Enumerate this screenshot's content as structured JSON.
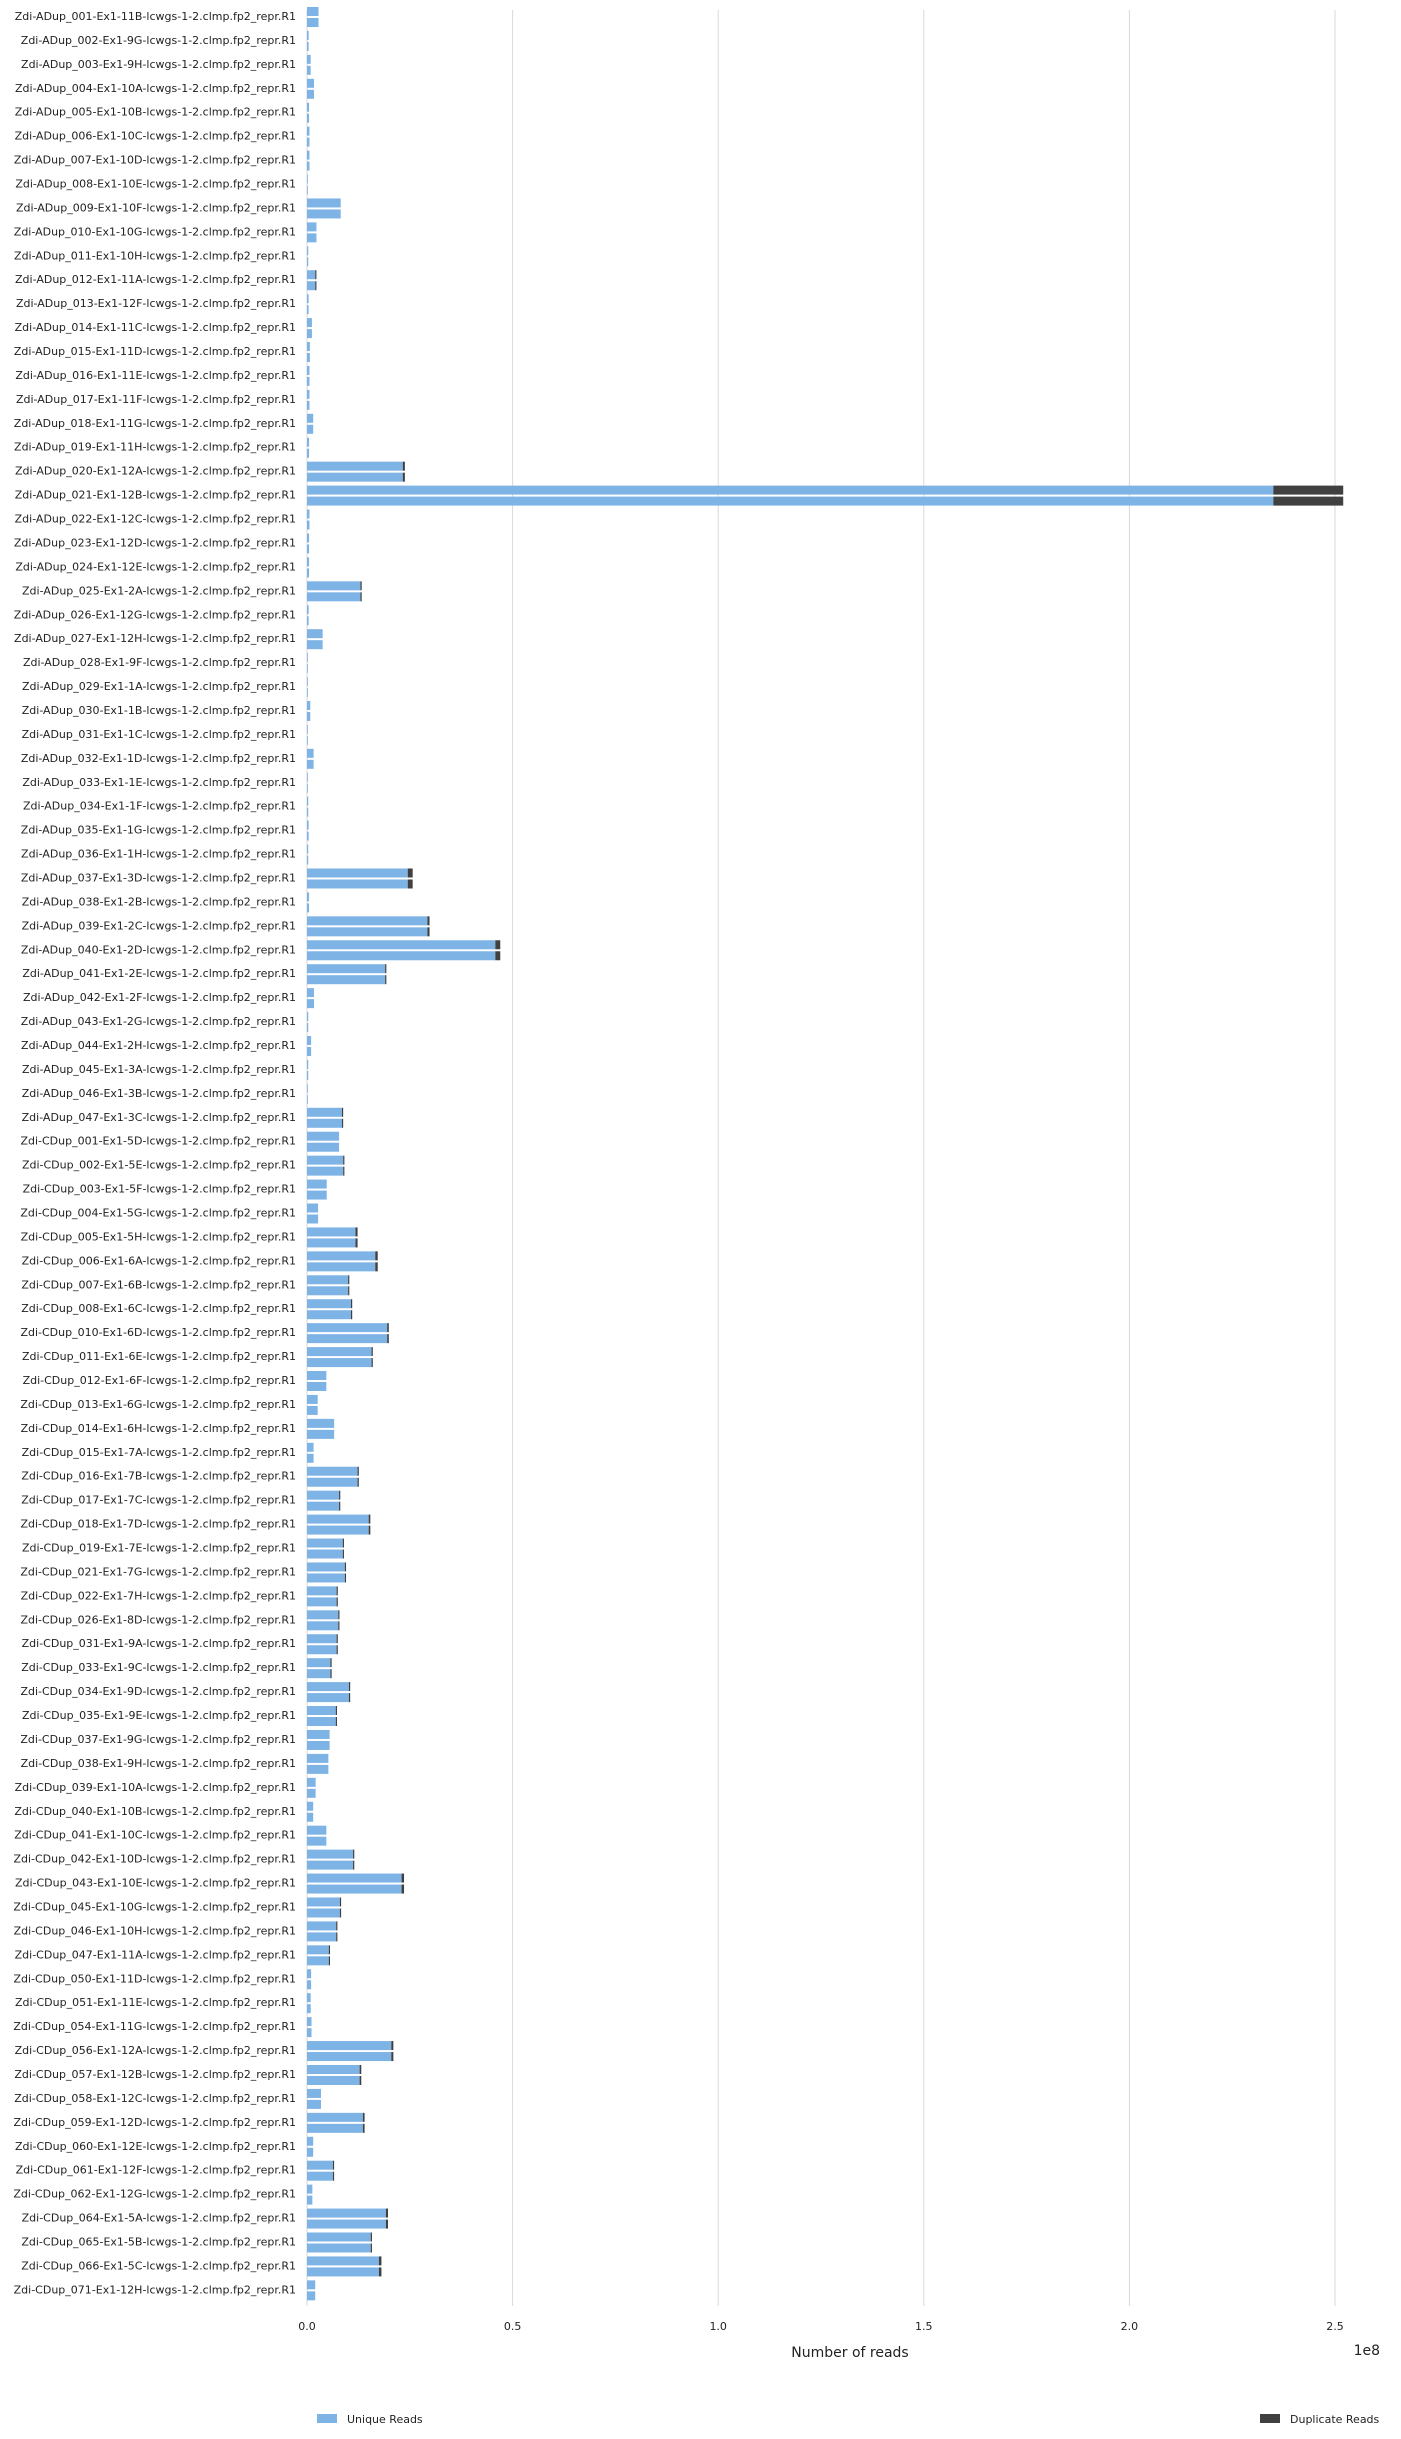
{
  "chart_data": {
    "type": "bar",
    "orientation": "horizontal",
    "stacked": true,
    "xlabel": "Number of reads",
    "x_offset_text": "1e8",
    "xlim": [
      0,
      2.55
    ],
    "xticks": [
      0.0,
      0.5,
      1.0,
      1.5,
      2.0,
      2.5
    ],
    "xtick_labels": [
      "0.0",
      "0.5",
      "1.0",
      "1.5",
      "2.0",
      "2.5"
    ],
    "grid": "vertical",
    "legend_position": "bottom",
    "colors": {
      "unique": "#7eb3e6",
      "duplicate": "#404040",
      "grid": "#d9d9d9"
    },
    "series": [
      {
        "name": "Unique Reads",
        "color": "#7eb3e6"
      },
      {
        "name": "Duplicate Reads",
        "color": "#404040"
      }
    ],
    "categories": [
      "Zdi-ADup_001-Ex1-11B-lcwgs-1-2.clmp.fp2_repr.R1",
      "Zdi-ADup_002-Ex1-9G-lcwgs-1-2.clmp.fp2_repr.R1",
      "Zdi-ADup_003-Ex1-9H-lcwgs-1-2.clmp.fp2_repr.R1",
      "Zdi-ADup_004-Ex1-10A-lcwgs-1-2.clmp.fp2_repr.R1",
      "Zdi-ADup_005-Ex1-10B-lcwgs-1-2.clmp.fp2_repr.R1",
      "Zdi-ADup_006-Ex1-10C-lcwgs-1-2.clmp.fp2_repr.R1",
      "Zdi-ADup_007-Ex1-10D-lcwgs-1-2.clmp.fp2_repr.R1",
      "Zdi-ADup_008-Ex1-10E-lcwgs-1-2.clmp.fp2_repr.R1",
      "Zdi-ADup_009-Ex1-10F-lcwgs-1-2.clmp.fp2_repr.R1",
      "Zdi-ADup_010-Ex1-10G-lcwgs-1-2.clmp.fp2_repr.R1",
      "Zdi-ADup_011-Ex1-10H-lcwgs-1-2.clmp.fp2_repr.R1",
      "Zdi-ADup_012-Ex1-11A-lcwgs-1-2.clmp.fp2_repr.R1",
      "Zdi-ADup_013-Ex1-12F-lcwgs-1-2.clmp.fp2_repr.R1",
      "Zdi-ADup_014-Ex1-11C-lcwgs-1-2.clmp.fp2_repr.R1",
      "Zdi-ADup_015-Ex1-11D-lcwgs-1-2.clmp.fp2_repr.R1",
      "Zdi-ADup_016-Ex1-11E-lcwgs-1-2.clmp.fp2_repr.R1",
      "Zdi-ADup_017-Ex1-11F-lcwgs-1-2.clmp.fp2_repr.R1",
      "Zdi-ADup_018-Ex1-11G-lcwgs-1-2.clmp.fp2_repr.R1",
      "Zdi-ADup_019-Ex1-11H-lcwgs-1-2.clmp.fp2_repr.R1",
      "Zdi-ADup_020-Ex1-12A-lcwgs-1-2.clmp.fp2_repr.R1",
      "Zdi-ADup_021-Ex1-12B-lcwgs-1-2.clmp.fp2_repr.R1",
      "Zdi-ADup_022-Ex1-12C-lcwgs-1-2.clmp.fp2_repr.R1",
      "Zdi-ADup_023-Ex1-12D-lcwgs-1-2.clmp.fp2_repr.R1",
      "Zdi-ADup_024-Ex1-12E-lcwgs-1-2.clmp.fp2_repr.R1",
      "Zdi-ADup_025-Ex1-2A-lcwgs-1-2.clmp.fp2_repr.R1",
      "Zdi-ADup_026-Ex1-12G-lcwgs-1-2.clmp.fp2_repr.R1",
      "Zdi-ADup_027-Ex1-12H-lcwgs-1-2.clmp.fp2_repr.R1",
      "Zdi-ADup_028-Ex1-9F-lcwgs-1-2.clmp.fp2_repr.R1",
      "Zdi-ADup_029-Ex1-1A-lcwgs-1-2.clmp.fp2_repr.R1",
      "Zdi-ADup_030-Ex1-1B-lcwgs-1-2.clmp.fp2_repr.R1",
      "Zdi-ADup_031-Ex1-1C-lcwgs-1-2.clmp.fp2_repr.R1",
      "Zdi-ADup_032-Ex1-1D-lcwgs-1-2.clmp.fp2_repr.R1",
      "Zdi-ADup_033-Ex1-1E-lcwgs-1-2.clmp.fp2_repr.R1",
      "Zdi-ADup_034-Ex1-1F-lcwgs-1-2.clmp.fp2_repr.R1",
      "Zdi-ADup_035-Ex1-1G-lcwgs-1-2.clmp.fp2_repr.R1",
      "Zdi-ADup_036-Ex1-1H-lcwgs-1-2.clmp.fp2_repr.R1",
      "Zdi-ADup_037-Ex1-3D-lcwgs-1-2.clmp.fp2_repr.R1",
      "Zdi-ADup_038-Ex1-2B-lcwgs-1-2.clmp.fp2_repr.R1",
      "Zdi-ADup_039-Ex1-2C-lcwgs-1-2.clmp.fp2_repr.R1",
      "Zdi-ADup_040-Ex1-2D-lcwgs-1-2.clmp.fp2_repr.R1",
      "Zdi-ADup_041-Ex1-2E-lcwgs-1-2.clmp.fp2_repr.R1",
      "Zdi-ADup_042-Ex1-2F-lcwgs-1-2.clmp.fp2_repr.R1",
      "Zdi-ADup_043-Ex1-2G-lcwgs-1-2.clmp.fp2_repr.R1",
      "Zdi-ADup_044-Ex1-2H-lcwgs-1-2.clmp.fp2_repr.R1",
      "Zdi-ADup_045-Ex1-3A-lcwgs-1-2.clmp.fp2_repr.R1",
      "Zdi-ADup_046-Ex1-3B-lcwgs-1-2.clmp.fp2_repr.R1",
      "Zdi-ADup_047-Ex1-3C-lcwgs-1-2.clmp.fp2_repr.R1",
      "Zdi-CDup_001-Ex1-5D-lcwgs-1-2.clmp.fp2_repr.R1",
      "Zdi-CDup_002-Ex1-5E-lcwgs-1-2.clmp.fp2_repr.R1",
      "Zdi-CDup_003-Ex1-5F-lcwgs-1-2.clmp.fp2_repr.R1",
      "Zdi-CDup_004-Ex1-5G-lcwgs-1-2.clmp.fp2_repr.R1",
      "Zdi-CDup_005-Ex1-5H-lcwgs-1-2.clmp.fp2_repr.R1",
      "Zdi-CDup_006-Ex1-6A-lcwgs-1-2.clmp.fp2_repr.R1",
      "Zdi-CDup_007-Ex1-6B-lcwgs-1-2.clmp.fp2_repr.R1",
      "Zdi-CDup_008-Ex1-6C-lcwgs-1-2.clmp.fp2_repr.R1",
      "Zdi-CDup_010-Ex1-6D-lcwgs-1-2.clmp.fp2_repr.R1",
      "Zdi-CDup_011-Ex1-6E-lcwgs-1-2.clmp.fp2_repr.R1",
      "Zdi-CDup_012-Ex1-6F-lcwgs-1-2.clmp.fp2_repr.R1",
      "Zdi-CDup_013-Ex1-6G-lcwgs-1-2.clmp.fp2_repr.R1",
      "Zdi-CDup_014-Ex1-6H-lcwgs-1-2.clmp.fp2_repr.R1",
      "Zdi-CDup_015-Ex1-7A-lcwgs-1-2.clmp.fp2_repr.R1",
      "Zdi-CDup_016-Ex1-7B-lcwgs-1-2.clmp.fp2_repr.R1",
      "Zdi-CDup_017-Ex1-7C-lcwgs-1-2.clmp.fp2_repr.R1",
      "Zdi-CDup_018-Ex1-7D-lcwgs-1-2.clmp.fp2_repr.R1",
      "Zdi-CDup_019-Ex1-7E-lcwgs-1-2.clmp.fp2_repr.R1",
      "Zdi-CDup_021-Ex1-7G-lcwgs-1-2.clmp.fp2_repr.R1",
      "Zdi-CDup_022-Ex1-7H-lcwgs-1-2.clmp.fp2_repr.R1",
      "Zdi-CDup_026-Ex1-8D-lcwgs-1-2.clmp.fp2_repr.R1",
      "Zdi-CDup_031-Ex1-9A-lcwgs-1-2.clmp.fp2_repr.R1",
      "Zdi-CDup_033-Ex1-9C-lcwgs-1-2.clmp.fp2_repr.R1",
      "Zdi-CDup_034-Ex1-9D-lcwgs-1-2.clmp.fp2_repr.R1",
      "Zdi-CDup_035-Ex1-9E-lcwgs-1-2.clmp.fp2_repr.R1",
      "Zdi-CDup_037-Ex1-9G-lcwgs-1-2.clmp.fp2_repr.R1",
      "Zdi-CDup_038-Ex1-9H-lcwgs-1-2.clmp.fp2_repr.R1",
      "Zdi-CDup_039-Ex1-10A-lcwgs-1-2.clmp.fp2_repr.R1",
      "Zdi-CDup_040-Ex1-10B-lcwgs-1-2.clmp.fp2_repr.R1",
      "Zdi-CDup_041-Ex1-10C-lcwgs-1-2.clmp.fp2_repr.R1",
      "Zdi-CDup_042-Ex1-10D-lcwgs-1-2.clmp.fp2_repr.R1",
      "Zdi-CDup_043-Ex1-10E-lcwgs-1-2.clmp.fp2_repr.R1",
      "Zdi-CDup_045-Ex1-10G-lcwgs-1-2.clmp.fp2_repr.R1",
      "Zdi-CDup_046-Ex1-10H-lcwgs-1-2.clmp.fp2_repr.R1",
      "Zdi-CDup_047-Ex1-11A-lcwgs-1-2.clmp.fp2_repr.R1",
      "Zdi-CDup_050-Ex1-11D-lcwgs-1-2.clmp.fp2_repr.R1",
      "Zdi-CDup_051-Ex1-11E-lcwgs-1-2.clmp.fp2_repr.R1",
      "Zdi-CDup_054-Ex1-11G-lcwgs-1-2.clmp.fp2_repr.R1",
      "Zdi-CDup_056-Ex1-12A-lcwgs-1-2.clmp.fp2_repr.R1",
      "Zdi-CDup_057-Ex1-12B-lcwgs-1-2.clmp.fp2_repr.R1",
      "Zdi-CDup_058-Ex1-12C-lcwgs-1-2.clmp.fp2_repr.R1",
      "Zdi-CDup_059-Ex1-12D-lcwgs-1-2.clmp.fp2_repr.R1",
      "Zdi-CDup_060-Ex1-12E-lcwgs-1-2.clmp.fp2_repr.R1",
      "Zdi-CDup_061-Ex1-12F-lcwgs-1-2.clmp.fp2_repr.R1",
      "Zdi-CDup_062-Ex1-12G-lcwgs-1-2.clmp.fp2_repr.R1",
      "Zdi-CDup_064-Ex1-5A-lcwgs-1-2.clmp.fp2_repr.R1",
      "Zdi-CDup_065-Ex1-5B-lcwgs-1-2.clmp.fp2_repr.R1",
      "Zdi-CDup_066-Ex1-5C-lcwgs-1-2.clmp.fp2_repr.R1",
      "Zdi-CDup_071-Ex1-12H-lcwgs-1-2.clmp.fp2_repr.R1"
    ],
    "unique_e8": [
      0.028,
      0.004,
      0.009,
      0.017,
      0.005,
      0.006,
      0.006,
      0.002,
      0.082,
      0.023,
      0.003,
      0.02,
      0.004,
      0.012,
      0.007,
      0.006,
      0.006,
      0.015,
      0.005,
      0.233,
      2.35,
      0.006,
      0.005,
      0.005,
      0.13,
      0.004,
      0.038,
      0.002,
      0.002,
      0.008,
      0.002,
      0.016,
      0.002,
      0.003,
      0.004,
      0.003,
      0.245,
      0.005,
      0.293,
      0.458,
      0.19,
      0.017,
      0.003,
      0.01,
      0.003,
      0.002,
      0.085,
      0.078,
      0.088,
      0.048,
      0.027,
      0.118,
      0.166,
      0.1,
      0.107,
      0.195,
      0.157,
      0.047,
      0.026,
      0.066,
      0.016,
      0.123,
      0.078,
      0.15,
      0.087,
      0.092,
      0.072,
      0.076,
      0.072,
      0.057,
      0.102,
      0.07,
      0.055,
      0.052,
      0.021,
      0.015,
      0.047,
      0.112,
      0.23,
      0.08,
      0.071,
      0.053,
      0.01,
      0.009,
      0.011,
      0.205,
      0.128,
      0.034,
      0.136,
      0.015,
      0.063,
      0.013,
      0.192,
      0.155,
      0.175,
      0.02
    ],
    "duplicate_e8": [
      0.0,
      0.0,
      0.0,
      0.0,
      0.0,
      0.0,
      0.0,
      0.0,
      0.0,
      0.0,
      0.0,
      0.002,
      0.0,
      0.0,
      0.0,
      0.0,
      0.0,
      0.0,
      0.0,
      0.005,
      0.17,
      0.0,
      0.0,
      0.0,
      0.003,
      0.0,
      0.0,
      0.0,
      0.0,
      0.0,
      0.0,
      0.0,
      0.0,
      0.0,
      0.0,
      0.0,
      0.012,
      0.0,
      0.005,
      0.012,
      0.003,
      0.0,
      0.0,
      0.0,
      0.0,
      0.0,
      0.002,
      0.0,
      0.002,
      0.0,
      0.0,
      0.005,
      0.006,
      0.002,
      0.002,
      0.004,
      0.003,
      0.0,
      0.0,
      0.0,
      0.0,
      0.003,
      0.002,
      0.004,
      0.002,
      0.002,
      0.002,
      0.002,
      0.002,
      0.002,
      0.003,
      0.002,
      0.0,
      0.0,
      0.0,
      0.0,
      0.0,
      0.003,
      0.006,
      0.002,
      0.002,
      0.002,
      0.0,
      0.0,
      0.0,
      0.005,
      0.004,
      0.0,
      0.004,
      0.0,
      0.002,
      0.0,
      0.005,
      0.003,
      0.006,
      0.0
    ]
  }
}
